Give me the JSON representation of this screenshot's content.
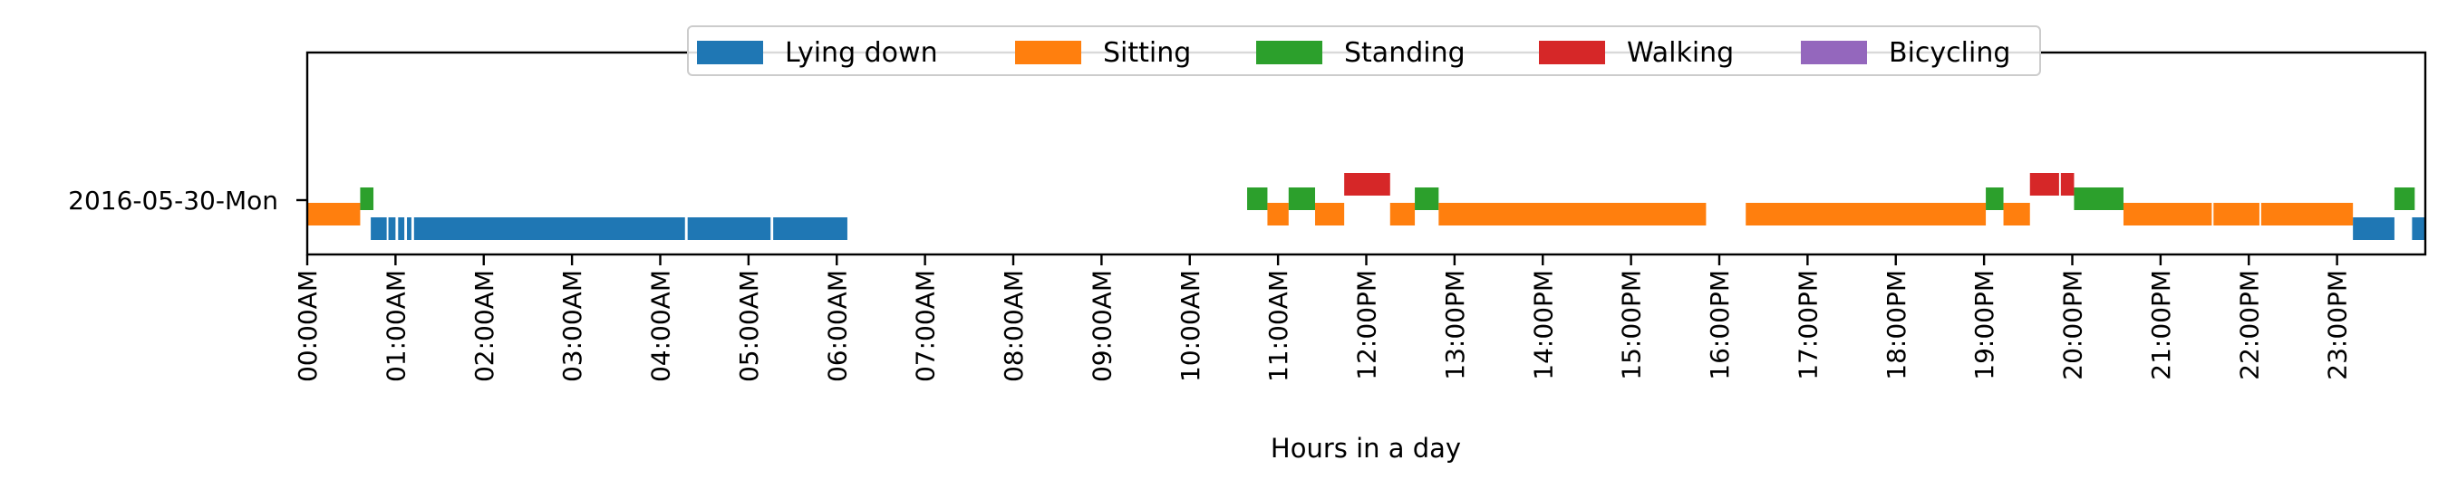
{
  "chart_data": {
    "type": "timeline",
    "xlabel": "Hours in a day",
    "xlim": [
      0,
      24
    ],
    "x_ticks": [
      "00:00AM",
      "01:00AM",
      "02:00AM",
      "03:00AM",
      "04:00AM",
      "05:00AM",
      "06:00AM",
      "07:00AM",
      "08:00AM",
      "09:00AM",
      "10:00AM",
      "11:00AM",
      "12:00PM",
      "13:00PM",
      "14:00PM",
      "15:00PM",
      "16:00PM",
      "17:00PM",
      "18:00PM",
      "19:00PM",
      "20:00PM",
      "21:00PM",
      "22:00PM",
      "23:00PM"
    ],
    "row_label": "2016-05-30-Mon",
    "legend_placement": "top-center",
    "grid": false,
    "categories": [
      {
        "name": "Lying down",
        "color": "#1f77b4"
      },
      {
        "name": "Sitting",
        "color": "#ff7f0e"
      },
      {
        "name": "Standing",
        "color": "#2ca02c"
      },
      {
        "name": "Walking",
        "color": "#d62728"
      },
      {
        "name": "Bicycling",
        "color": "#9467bd"
      }
    ],
    "segments": [
      {
        "activity": "Sitting",
        "start": 0.0,
        "end": 0.6
      },
      {
        "activity": "Standing",
        "start": 0.6,
        "end": 0.75
      },
      {
        "activity": "Lying down",
        "start": 0.72,
        "end": 0.9
      },
      {
        "activity": "Lying down",
        "start": 0.92,
        "end": 1.0
      },
      {
        "activity": "Lying down",
        "start": 1.03,
        "end": 1.1
      },
      {
        "activity": "Lying down",
        "start": 1.13,
        "end": 1.18
      },
      {
        "activity": "Lying down",
        "start": 1.21,
        "end": 4.28
      },
      {
        "activity": "Lying down",
        "start": 4.31,
        "end": 5.25
      },
      {
        "activity": "Lying down",
        "start": 5.28,
        "end": 6.12
      },
      {
        "activity": "Standing",
        "start": 10.65,
        "end": 10.88
      },
      {
        "activity": "Sitting",
        "start": 10.88,
        "end": 11.12
      },
      {
        "activity": "Standing",
        "start": 11.12,
        "end": 11.42
      },
      {
        "activity": "Sitting",
        "start": 11.42,
        "end": 11.75
      },
      {
        "activity": "Walking",
        "start": 11.75,
        "end": 12.27
      },
      {
        "activity": "Sitting",
        "start": 12.27,
        "end": 12.55
      },
      {
        "activity": "Standing",
        "start": 12.55,
        "end": 12.82
      },
      {
        "activity": "Sitting",
        "start": 12.82,
        "end": 15.85
      },
      {
        "activity": "Sitting",
        "start": 16.3,
        "end": 19.02
      },
      {
        "activity": "Standing",
        "start": 19.02,
        "end": 19.22
      },
      {
        "activity": "Sitting",
        "start": 19.22,
        "end": 19.52
      },
      {
        "activity": "Walking",
        "start": 19.52,
        "end": 19.85
      },
      {
        "activity": "Walking",
        "start": 19.87,
        "end": 20.02
      },
      {
        "activity": "Standing",
        "start": 20.02,
        "end": 20.58
      },
      {
        "activity": "Sitting",
        "start": 20.58,
        "end": 21.58
      },
      {
        "activity": "Sitting",
        "start": 21.6,
        "end": 22.12
      },
      {
        "activity": "Sitting",
        "start": 22.14,
        "end": 23.18
      },
      {
        "activity": "Lying down",
        "start": 23.18,
        "end": 23.65
      },
      {
        "activity": "Standing",
        "start": 23.65,
        "end": 23.88
      },
      {
        "activity": "Lying down",
        "start": 23.85,
        "end": 24.0
      }
    ]
  }
}
